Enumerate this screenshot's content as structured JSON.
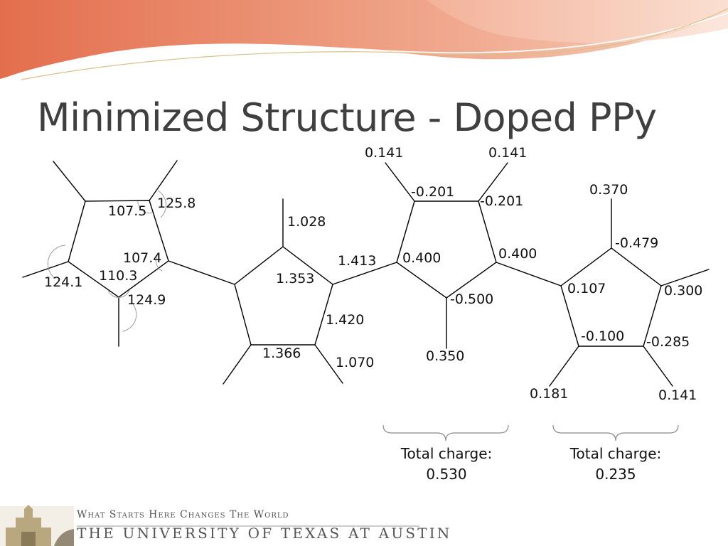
{
  "slide": {
    "title": "Minimized Structure - Doped PPy",
    "footer_tagline": "What Starts Here Changes The World",
    "footer_university": "THE UNIVERSITY OF TEXAS AT AUSTIN",
    "accent_color": "#e8876a"
  },
  "diagram": {
    "ring1_angles": [
      "125.8",
      "107.5",
      "107.4",
      "110.3",
      "124.1",
      "124.9"
    ],
    "ring2_lengths": [
      "1.028",
      "1.353",
      "1.413",
      "1.420",
      "1.366",
      "1.070"
    ],
    "ring3_charges": [
      "0.141",
      "0.141",
      "-0.201",
      "-0.201",
      "0.400",
      "0.400",
      "-0.500",
      "0.350"
    ],
    "ring4_charges": [
      "0.370",
      "-0.479",
      "0.107",
      "0.300",
      "-0.100",
      "-0.285",
      "0.181",
      "0.141"
    ],
    "group1_total_label": "Total charge:",
    "group1_total_value": "0.530",
    "group2_total_label": "Total charge:",
    "group2_total_value": "0.235"
  }
}
